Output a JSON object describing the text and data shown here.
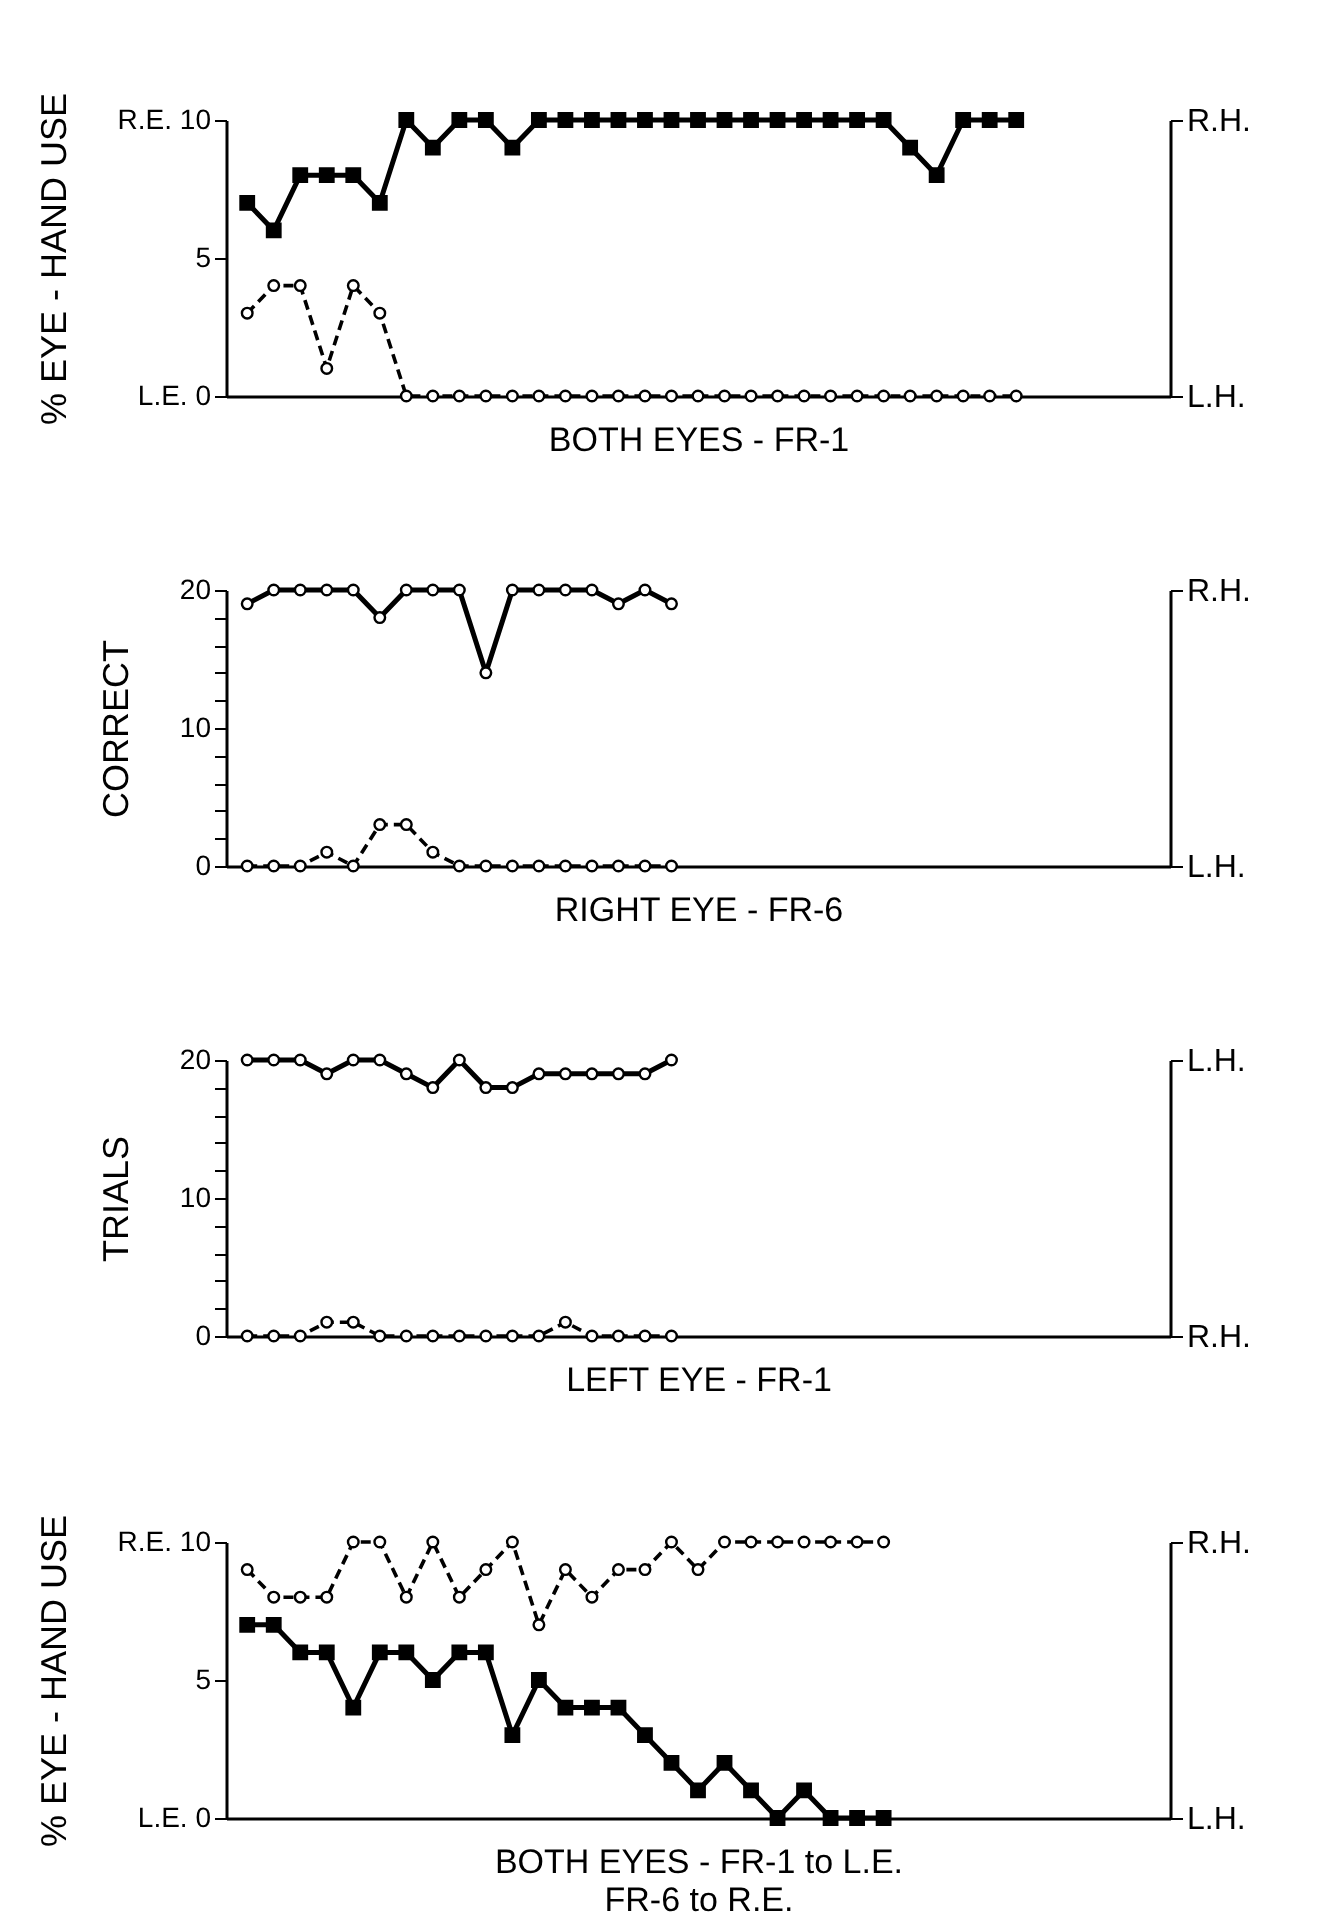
{
  "chart_data": [
    {
      "type": "line",
      "xlabel": "BOTH EYES - FR-1",
      "ylabel": "% EYE - HAND USE",
      "categories": [
        null,
        null,
        null,
        null,
        null,
        null,
        null,
        null,
        null,
        null,
        null,
        null,
        null,
        null,
        null,
        null,
        null,
        null,
        null,
        null,
        null,
        null,
        null,
        null,
        null,
        null,
        null,
        null,
        null,
        null,
        null,
        null,
        null,
        null,
        null
      ],
      "ylim": [
        0,
        10
      ],
      "yticks": [
        {
          "value": 0,
          "label": "L.E. 0"
        },
        5,
        {
          "value": 10,
          "label": "R.E. 10"
        }
      ],
      "y2_categories": [
        "R.H.",
        "L.H."
      ],
      "tick_labels": "y",
      "grid": false,
      "series": [
        {
          "color": "#000000",
          "marker": "square",
          "line_style": "solid",
          "values": [
            7,
            6,
            8,
            8,
            8,
            7,
            10,
            9,
            10,
            10,
            9,
            10,
            10,
            10,
            10,
            10,
            10,
            10,
            10,
            10,
            10,
            10,
            10,
            10,
            10,
            9,
            8,
            10,
            10,
            10,
            null,
            null,
            null,
            null,
            null
          ]
        },
        {
          "color": "#000000",
          "marker": "circle",
          "line_style": "dashed",
          "values": [
            3,
            4,
            4,
            1,
            4,
            3,
            0,
            0,
            0,
            0,
            0,
            0,
            0,
            0,
            0,
            0,
            0,
            0,
            0,
            0,
            0,
            0,
            0,
            0,
            0,
            0,
            0,
            0,
            0,
            0,
            null,
            null,
            null,
            null,
            null
          ]
        }
      ]
    },
    {
      "type": "line",
      "xlabel": "RIGHT EYE - FR-6",
      "ylabel": "CORRECT",
      "categories": [
        null,
        null,
        null,
        null,
        null,
        null,
        null,
        null,
        null,
        null,
        null,
        null,
        null,
        null,
        null,
        null,
        null,
        null,
        null,
        null,
        null,
        null,
        null,
        null,
        null,
        null,
        null,
        null,
        null,
        null,
        null,
        null,
        null,
        null,
        null
      ],
      "ylim": [
        0,
        20
      ],
      "yticks": [
        0,
        {
          "value": 2,
          "label": null
        },
        {
          "value": 4,
          "label": null
        },
        {
          "value": 6,
          "label": null
        },
        {
          "value": 8,
          "label": null
        },
        10,
        {
          "value": 12,
          "label": null
        },
        {
          "value": 14,
          "label": null
        },
        {
          "value": 16,
          "label": null
        },
        {
          "value": 18,
          "label": null
        },
        20
      ],
      "y2_categories": [
        "R.H.",
        "L.H."
      ],
      "tick_labels": "y",
      "grid": false,
      "series": [
        {
          "color": "#000000",
          "marker": "circle",
          "line_style": "solid",
          "values": [
            19,
            20,
            20,
            20,
            20,
            18,
            20,
            20,
            20,
            14,
            20,
            20,
            20,
            20,
            19,
            20,
            19,
            null,
            null,
            null,
            null,
            null,
            null,
            null,
            null,
            null,
            null,
            null,
            null,
            null,
            null,
            null,
            null,
            null,
            null
          ]
        },
        {
          "color": "#000000",
          "marker": "circle",
          "line_style": "dashed",
          "values": [
            0,
            0,
            0,
            1,
            0,
            3,
            3,
            1,
            0,
            0,
            0,
            0,
            0,
            0,
            0,
            0,
            0,
            null,
            null,
            null,
            null,
            null,
            null,
            null,
            null,
            null,
            null,
            null,
            null,
            null,
            null,
            null,
            null,
            null,
            null
          ]
        }
      ]
    },
    {
      "type": "line",
      "xlabel": "LEFT EYE - FR-1",
      "ylabel": "TRIALS",
      "categories": [
        null,
        null,
        null,
        null,
        null,
        null,
        null,
        null,
        null,
        null,
        null,
        null,
        null,
        null,
        null,
        null,
        null,
        null,
        null,
        null,
        null,
        null,
        null,
        null,
        null,
        null,
        null,
        null,
        null,
        null,
        null,
        null,
        null,
        null,
        null
      ],
      "ylim": [
        0,
        20
      ],
      "yticks": [
        0,
        {
          "value": 2,
          "label": null
        },
        {
          "value": 4,
          "label": null
        },
        {
          "value": 6,
          "label": null
        },
        {
          "value": 8,
          "label": null
        },
        10,
        {
          "value": 12,
          "label": null
        },
        {
          "value": 14,
          "label": null
        },
        {
          "value": 16,
          "label": null
        },
        {
          "value": 18,
          "label": null
        },
        20
      ],
      "y2_categories": [
        "L.H.",
        "R.H."
      ],
      "tick_labels": "y",
      "grid": false,
      "series": [
        {
          "color": "#000000",
          "marker": "circle",
          "line_style": "solid",
          "values": [
            20,
            20,
            20,
            19,
            20,
            20,
            19,
            18,
            20,
            18,
            18,
            19,
            19,
            19,
            19,
            19,
            20,
            null,
            null,
            null,
            null,
            null,
            null,
            null,
            null,
            null,
            null,
            null,
            null,
            null,
            null,
            null,
            null,
            null,
            null
          ]
        },
        {
          "color": "#000000",
          "marker": "circle",
          "line_style": "dashed",
          "values": [
            0,
            0,
            0,
            1,
            1,
            0,
            0,
            0,
            0,
            0,
            0,
            0,
            1,
            0,
            0,
            0,
            0,
            null,
            null,
            null,
            null,
            null,
            null,
            null,
            null,
            null,
            null,
            null,
            null,
            null,
            null,
            null,
            null,
            null,
            null
          ]
        }
      ]
    },
    {
      "type": "line",
      "xlabel": "BOTH EYES - FR-1 to L.E.\nFR-6 to R.E.",
      "ylabel": "% EYE - HAND USE",
      "categories": [
        null,
        null,
        null,
        null,
        null,
        null,
        null,
        null,
        null,
        null,
        null,
        null,
        null,
        null,
        null,
        null,
        null,
        null,
        null,
        null,
        null,
        null,
        null,
        null,
        null,
        null,
        null,
        null,
        null,
        null,
        null,
        null,
        null,
        null,
        null
      ],
      "ylim": [
        0,
        10
      ],
      "yticks": [
        {
          "value": 0,
          "label": "L.E. 0"
        },
        5,
        {
          "value": 10,
          "label": "R.E. 10"
        }
      ],
      "y2_categories": [
        "R.H.",
        "L.H."
      ],
      "tick_labels": "y",
      "grid": false,
      "series": [
        {
          "color": "#000000",
          "marker": "circle",
          "line_style": "dashed",
          "values": [
            9,
            8,
            8,
            8,
            10,
            10,
            8,
            10,
            8,
            9,
            10,
            7,
            9,
            8,
            9,
            9,
            10,
            9,
            10,
            10,
            10,
            10,
            10,
            10,
            10,
            null,
            null,
            null,
            null,
            null,
            null,
            null,
            null,
            null,
            null
          ]
        },
        {
          "color": "#000000",
          "marker": "square",
          "line_style": "solid",
          "values": [
            7,
            7,
            6,
            6,
            4,
            6,
            6,
            5,
            6,
            6,
            3,
            5,
            4,
            4,
            4,
            3,
            2,
            1,
            2,
            1,
            0,
            1,
            0,
            0,
            0,
            null,
            null,
            null,
            null,
            null,
            null,
            null,
            null,
            null,
            null
          ]
        }
      ]
    }
  ]
}
